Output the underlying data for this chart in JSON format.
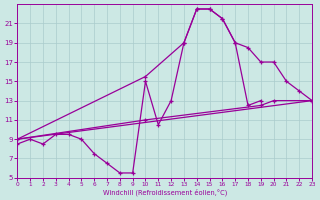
{
  "background_color": "#cce8e4",
  "grid_color": "#aacccc",
  "line_color": "#990099",
  "xlim": [
    0,
    23
  ],
  "ylim": [
    5,
    23
  ],
  "xtick_vals": [
    0,
    1,
    2,
    3,
    4,
    5,
    6,
    7,
    8,
    9,
    10,
    11,
    12,
    13,
    14,
    15,
    16,
    17,
    18,
    19,
    20,
    21,
    22,
    23
  ],
  "ytick_vals": [
    5,
    7,
    9,
    11,
    13,
    15,
    17,
    19,
    21
  ],
  "xlabel": "Windchill (Refroidissement éolien,°C)",
  "curve1_x": [
    0,
    1,
    2,
    3,
    4,
    5,
    6,
    7,
    8,
    9,
    10,
    11,
    12,
    13,
    14,
    15,
    16,
    17,
    18,
    19
  ],
  "curve1_y": [
    8.5,
    9.0,
    8.5,
    9.5,
    9.5,
    9.0,
    7.5,
    6.5,
    5.5,
    5.5,
    15.0,
    10.5,
    13.0,
    19.0,
    22.5,
    22.5,
    21.5,
    19.0,
    12.5,
    13.0
  ],
  "curve2_x": [
    0,
    10,
    13,
    14,
    15,
    16,
    17,
    18,
    19,
    20,
    21,
    22,
    23
  ],
  "curve2_y": [
    9.0,
    15.5,
    19.0,
    22.5,
    22.5,
    21.5,
    19.0,
    18.5,
    17.0,
    17.0,
    15.0,
    14.0,
    13.0
  ],
  "curve3_x": [
    0,
    23
  ],
  "curve3_y": [
    9.0,
    13.0
  ],
  "curve4_x": [
    0,
    10,
    19,
    20,
    23
  ],
  "curve4_y": [
    9.0,
    11.0,
    12.5,
    13.0,
    13.0
  ]
}
